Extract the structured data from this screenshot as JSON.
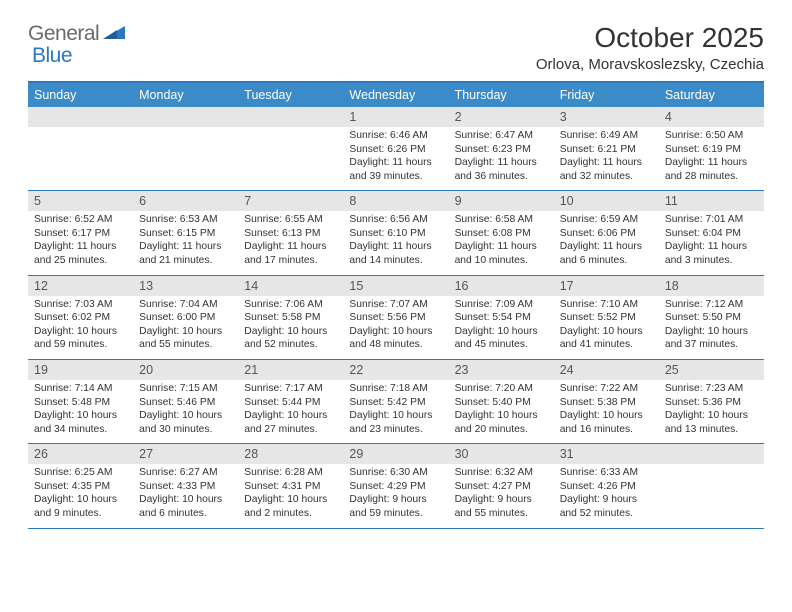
{
  "logo": {
    "part1": "General",
    "part2": "Blue"
  },
  "title": "October 2025",
  "location": "Orlova, Moravskoslezsky, Czechia",
  "colors": {
    "accent": "#2b78bf",
    "header_bg": "#3b8bc9",
    "day_num_bg": "#e6e6e6",
    "text": "#333333",
    "logo_gray": "#6a6a6a"
  },
  "day_names": [
    "Sunday",
    "Monday",
    "Tuesday",
    "Wednesday",
    "Thursday",
    "Friday",
    "Saturday"
  ],
  "weeks": [
    [
      {
        "blank": true
      },
      {
        "blank": true
      },
      {
        "blank": true
      },
      {
        "n": "1",
        "sr": "6:46 AM",
        "ss": "6:26 PM",
        "dl": "11 hours and 39 minutes."
      },
      {
        "n": "2",
        "sr": "6:47 AM",
        "ss": "6:23 PM",
        "dl": "11 hours and 36 minutes."
      },
      {
        "n": "3",
        "sr": "6:49 AM",
        "ss": "6:21 PM",
        "dl": "11 hours and 32 minutes."
      },
      {
        "n": "4",
        "sr": "6:50 AM",
        "ss": "6:19 PM",
        "dl": "11 hours and 28 minutes."
      }
    ],
    [
      {
        "n": "5",
        "sr": "6:52 AM",
        "ss": "6:17 PM",
        "dl": "11 hours and 25 minutes."
      },
      {
        "n": "6",
        "sr": "6:53 AM",
        "ss": "6:15 PM",
        "dl": "11 hours and 21 minutes."
      },
      {
        "n": "7",
        "sr": "6:55 AM",
        "ss": "6:13 PM",
        "dl": "11 hours and 17 minutes."
      },
      {
        "n": "8",
        "sr": "6:56 AM",
        "ss": "6:10 PM",
        "dl": "11 hours and 14 minutes."
      },
      {
        "n": "9",
        "sr": "6:58 AM",
        "ss": "6:08 PM",
        "dl": "11 hours and 10 minutes."
      },
      {
        "n": "10",
        "sr": "6:59 AM",
        "ss": "6:06 PM",
        "dl": "11 hours and 6 minutes."
      },
      {
        "n": "11",
        "sr": "7:01 AM",
        "ss": "6:04 PM",
        "dl": "11 hours and 3 minutes."
      }
    ],
    [
      {
        "n": "12",
        "sr": "7:03 AM",
        "ss": "6:02 PM",
        "dl": "10 hours and 59 minutes."
      },
      {
        "n": "13",
        "sr": "7:04 AM",
        "ss": "6:00 PM",
        "dl": "10 hours and 55 minutes."
      },
      {
        "n": "14",
        "sr": "7:06 AM",
        "ss": "5:58 PM",
        "dl": "10 hours and 52 minutes."
      },
      {
        "n": "15",
        "sr": "7:07 AM",
        "ss": "5:56 PM",
        "dl": "10 hours and 48 minutes."
      },
      {
        "n": "16",
        "sr": "7:09 AM",
        "ss": "5:54 PM",
        "dl": "10 hours and 45 minutes."
      },
      {
        "n": "17",
        "sr": "7:10 AM",
        "ss": "5:52 PM",
        "dl": "10 hours and 41 minutes."
      },
      {
        "n": "18",
        "sr": "7:12 AM",
        "ss": "5:50 PM",
        "dl": "10 hours and 37 minutes."
      }
    ],
    [
      {
        "n": "19",
        "sr": "7:14 AM",
        "ss": "5:48 PM",
        "dl": "10 hours and 34 minutes."
      },
      {
        "n": "20",
        "sr": "7:15 AM",
        "ss": "5:46 PM",
        "dl": "10 hours and 30 minutes."
      },
      {
        "n": "21",
        "sr": "7:17 AM",
        "ss": "5:44 PM",
        "dl": "10 hours and 27 minutes."
      },
      {
        "n": "22",
        "sr": "7:18 AM",
        "ss": "5:42 PM",
        "dl": "10 hours and 23 minutes."
      },
      {
        "n": "23",
        "sr": "7:20 AM",
        "ss": "5:40 PM",
        "dl": "10 hours and 20 minutes."
      },
      {
        "n": "24",
        "sr": "7:22 AM",
        "ss": "5:38 PM",
        "dl": "10 hours and 16 minutes."
      },
      {
        "n": "25",
        "sr": "7:23 AM",
        "ss": "5:36 PM",
        "dl": "10 hours and 13 minutes."
      }
    ],
    [
      {
        "n": "26",
        "sr": "6:25 AM",
        "ss": "4:35 PM",
        "dl": "10 hours and 9 minutes."
      },
      {
        "n": "27",
        "sr": "6:27 AM",
        "ss": "4:33 PM",
        "dl": "10 hours and 6 minutes."
      },
      {
        "n": "28",
        "sr": "6:28 AM",
        "ss": "4:31 PM",
        "dl": "10 hours and 2 minutes."
      },
      {
        "n": "29",
        "sr": "6:30 AM",
        "ss": "4:29 PM",
        "dl": "9 hours and 59 minutes."
      },
      {
        "n": "30",
        "sr": "6:32 AM",
        "ss": "4:27 PM",
        "dl": "9 hours and 55 minutes."
      },
      {
        "n": "31",
        "sr": "6:33 AM",
        "ss": "4:26 PM",
        "dl": "9 hours and 52 minutes."
      },
      {
        "blank": true
      }
    ]
  ],
  "labels": {
    "sunrise": "Sunrise:",
    "sunset": "Sunset:",
    "daylight": "Daylight:"
  }
}
